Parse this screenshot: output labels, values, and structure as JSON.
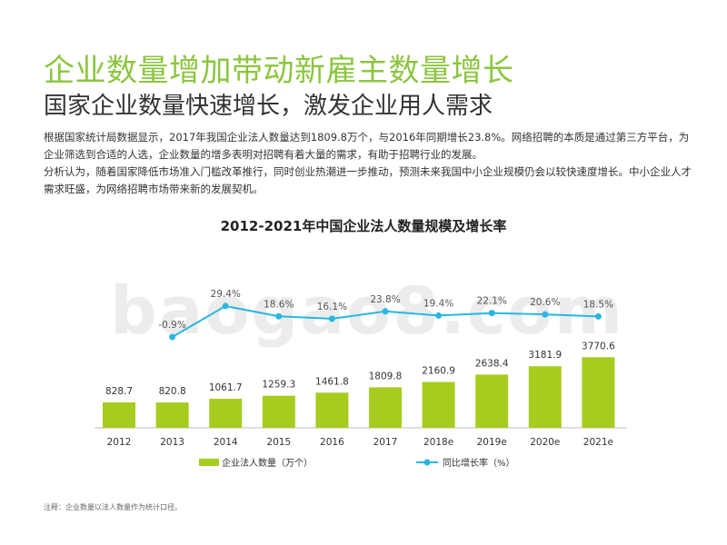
{
  "header": {
    "title": "企业数量增加带动新雇主数量增长",
    "subtitle": "国家企业数量快速增长，激发企业用人需求"
  },
  "body": {
    "paragraph1": "根据国家统计局数据显示，2017年我国企业法人数量达到1809.8万个，与2016年同期增长23.8%。网络招聘的本质是通过第三方平台，为企业筛选到合适的人选，企业数量的增多表明对招聘有着大量的需求，有助于招聘行业的发展。",
    "paragraph2": "分析认为，随着国家降低市场准入门槛改革推行，同时创业热潮进一步推动，预测未来我国中小企业规模仍会以较快速度增长。中小企业人才需求旺盛，为网络招聘市场带来新的发展契机。"
  },
  "watermark": "baogao8.com",
  "footnote": "注释：企业数量以法人数量作为统计口径。",
  "colors": {
    "accent": "#8cc63f",
    "bar": "#a6cc1f",
    "line": "#29b6e0"
  },
  "chart_data": {
    "type": "bar",
    "title": "2012-2021年中国企业法人数量规模及增长率",
    "categories": [
      "2012",
      "2013",
      "2014",
      "2015",
      "2016",
      "2017",
      "2018e",
      "2019e",
      "2020e",
      "2021e"
    ],
    "series": [
      {
        "name": "企业法人数量（万个）",
        "type": "bar",
        "values": [
          828.7,
          820.8,
          1061.7,
          1259.3,
          1461.8,
          1809.8,
          2160.9,
          2638.4,
          3181.9,
          3770.6
        ]
      },
      {
        "name": "同比增长率（%）",
        "type": "line",
        "values": [
          null,
          -0.9,
          29.4,
          18.6,
          16.1,
          23.8,
          19.4,
          22.1,
          20.6,
          18.5
        ]
      }
    ],
    "legend_position": "bottom",
    "grid": false
  }
}
